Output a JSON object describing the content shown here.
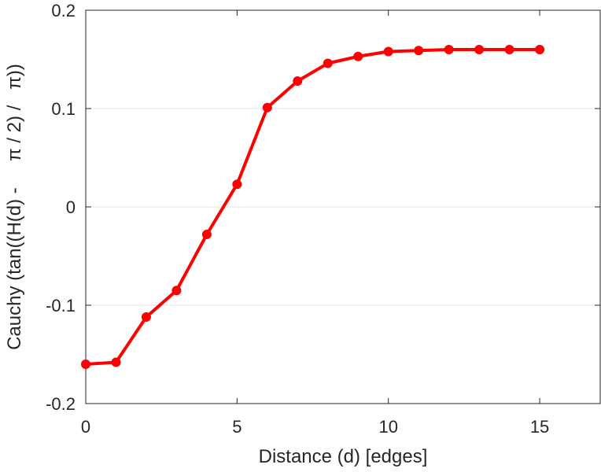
{
  "chart_data": {
    "type": "line",
    "xlabel": "Distance (d) [edges]",
    "ylabel": "Cauchy (tan((H(d) -     π / 2) /   π))",
    "xlim": [
      0,
      17
    ],
    "ylim": [
      -0.2,
      0.2
    ],
    "x_ticks": [
      0,
      5,
      10,
      15
    ],
    "x_tick_labels": [
      "0",
      "5",
      "10",
      "15"
    ],
    "y_ticks": [
      -0.2,
      -0.1,
      0,
      0.1,
      0.2
    ],
    "y_tick_labels": [
      "-0.2",
      "-0.1",
      "0",
      "0.1",
      "0.2"
    ],
    "grid": "horizontal",
    "series": [
      {
        "color": "#ff0000",
        "marker": "circle",
        "x": [
          0,
          1,
          2,
          3,
          4,
          5,
          6,
          7,
          8,
          9,
          10,
          11,
          12,
          13,
          14,
          15
        ],
        "y": [
          -0.16,
          -0.158,
          -0.112,
          -0.085,
          -0.028,
          0.023,
          0.101,
          0.128,
          0.146,
          0.153,
          0.158,
          0.159,
          0.16,
          0.16,
          0.16,
          0.16
        ]
      }
    ]
  }
}
